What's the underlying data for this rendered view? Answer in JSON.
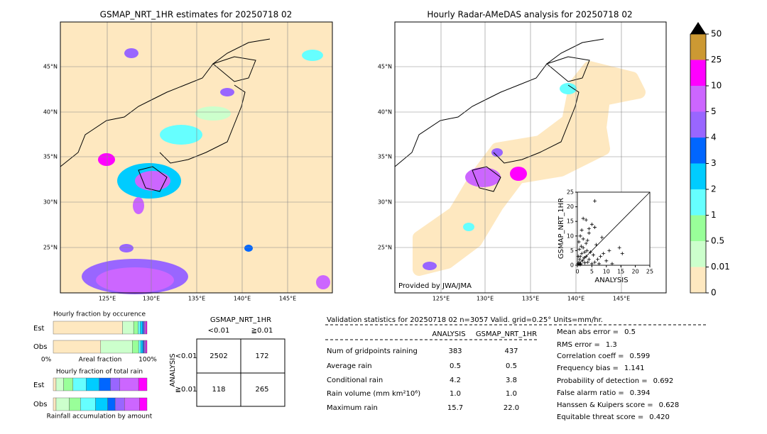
{
  "left_map": {
    "title": "GSMAP_NRT_1HR estimates for 20250718 02",
    "lat_labels": [
      "45°N",
      "40°N",
      "35°N",
      "30°N",
      "25°N"
    ],
    "lon_labels": [
      "125°E",
      "130°E",
      "135°E",
      "140°E",
      "145°E"
    ]
  },
  "right_map": {
    "title": "Hourly Radar-AMeDAS analysis for 20250718 02",
    "lat_labels": [
      "45°N",
      "40°N",
      "35°N",
      "30°N",
      "25°N"
    ],
    "lon_labels": [
      "125°E",
      "130°E",
      "135°E",
      "140°E",
      "145°E"
    ],
    "credit": "Provided by JWA/JMA"
  },
  "scatter": {
    "xlabel": "ANALYSIS",
    "ylabel": "GSMAP_NRT_1HR",
    "xlim": [
      0,
      25
    ],
    "ylim": [
      0,
      25
    ],
    "xticks": [
      0,
      5,
      10,
      15,
      20,
      25
    ],
    "yticks": [
      0,
      5,
      10,
      15,
      20,
      25
    ],
    "x": [
      0.2,
      0.5,
      0.8,
      1.0,
      1.2,
      1.5,
      1.8,
      2.0,
      2.3,
      2.6,
      3.0,
      3.3,
      3.6,
      4.0,
      4.5,
      5.0,
      5.5,
      6.0,
      6.5,
      7.0,
      7.5,
      8.0,
      9.0,
      10.0,
      11.0,
      12.0,
      14.5,
      15.5,
      0.5,
      1.0,
      1.5,
      2.0,
      3.0,
      4.0,
      0.3,
      0.7,
      1.3,
      2.5,
      3.5,
      5.0,
      6.0,
      2.0,
      3.0,
      4.0,
      1.0,
      0.5,
      8.5,
      6.0
    ],
    "y": [
      0.5,
      1.0,
      2.0,
      3.0,
      0.5,
      4.0,
      1.5,
      6.0,
      2.5,
      0.8,
      3.0,
      5.0,
      1.0,
      2.0,
      4.5,
      0.5,
      3.5,
      1.0,
      7.0,
      2.0,
      0.5,
      3.0,
      4.0,
      1.5,
      5.0,
      0.5,
      6.0,
      4.0,
      8.0,
      10.0,
      12.0,
      9.0,
      7.5,
      11.0,
      3.0,
      5.5,
      6.5,
      4.5,
      8.5,
      14.0,
      13.0,
      16.0,
      15.5,
      12.5,
      0.2,
      0.3,
      9.5,
      22.0
    ]
  },
  "colorbar": {
    "ticks": [
      "0",
      "0.01",
      "0.5",
      "1",
      "2",
      "3",
      "4",
      "5",
      "10",
      "25",
      "50"
    ],
    "colors": [
      "#fee8c0",
      "#ccffcc",
      "#99ff99",
      "#66ffff",
      "#00ccff",
      "#0066ff",
      "#9966ff",
      "#cc66ff",
      "#ff00ff",
      "#cc9933"
    ],
    "over_color": "#000000"
  },
  "fraction": {
    "title": "Hourly fraction by occurence",
    "rows": [
      "Est",
      "Obs"
    ],
    "axis_left": "0%",
    "axis_mid": "Areal fraction",
    "axis_right": "100%",
    "occurrence": [
      [
        62,
        10,
        4,
        2,
        2,
        1,
        1,
        1,
        1
      ],
      [
        45,
        30,
        6,
        2,
        2,
        1,
        1,
        1,
        1
      ]
    ],
    "occurrence_colors": [
      "#fee8c0",
      "#ccffcc",
      "#99ff99",
      "#66ffff",
      "#00ccff",
      "#0066ff",
      "#9966ff",
      "#cc66ff",
      "#ff00ff"
    ],
    "total_title": "Hourly fraction of total rain",
    "total_footer": "Rainfall accumulation by amount",
    "total": [
      [
        3,
        8,
        10,
        14,
        14,
        12,
        10,
        20,
        9
      ],
      [
        3,
        14,
        12,
        16,
        13,
        8,
        10,
        16,
        8
      ]
    ]
  },
  "contingency": {
    "title": "GSMAP_NRT_1HR",
    "col_headers": [
      "<0.01",
      "≧0.01"
    ],
    "row_label": "ANALYSIS",
    "row_headers": [
      "<0.01",
      "≧0.01"
    ],
    "cells": [
      [
        "2502",
        "172"
      ],
      [
        "118",
        "265"
      ]
    ]
  },
  "validation": {
    "header": "Validation statistics for 20250718 02  n=3057 Valid. grid=0.25° Units=mm/hr.",
    "columns": [
      "ANALYSIS",
      "GSMAP_NRT_1HR"
    ],
    "rows": [
      {
        "label": "Num of gridpoints raining",
        "values": [
          "383",
          "437"
        ]
      },
      {
        "label": "Average rain",
        "values": [
          "0.5",
          "0.5"
        ]
      },
      {
        "label": "Conditional rain",
        "values": [
          "4.2",
          "3.8"
        ]
      },
      {
        "label": "Rain volume (mm km²10⁶)",
        "values": [
          "1.0",
          "1.0"
        ]
      },
      {
        "label": "Maximum rain",
        "values": [
          "15.7",
          "22.0"
        ]
      }
    ],
    "scores": [
      {
        "label": "Mean abs error =",
        "value": "0.5"
      },
      {
        "label": "RMS error =",
        "value": "1.3"
      },
      {
        "label": "Correlation coeff =",
        "value": "0.599"
      },
      {
        "label": "Frequency bias =",
        "value": "1.141"
      },
      {
        "label": "Probability of detection =",
        "value": "0.692"
      },
      {
        "label": "False alarm ratio =",
        "value": "0.394"
      },
      {
        "label": "Hanssen & Kuipers score =",
        "value": "0.628"
      },
      {
        "label": "Equitable threat score =",
        "value": "0.420"
      }
    ]
  }
}
